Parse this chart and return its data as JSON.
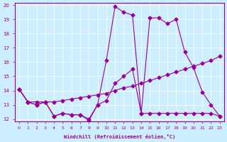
{
  "xlabel": "Windchill (Refroidissement éolien,°C)",
  "bg_color": "#cceeff",
  "line_color": "#990099",
  "xlim": [
    0,
    23
  ],
  "ylim": [
    12,
    20
  ],
  "xticks": [
    0,
    1,
    2,
    3,
    4,
    5,
    6,
    7,
    8,
    9,
    10,
    11,
    12,
    13,
    14,
    15,
    16,
    17,
    18,
    19,
    20,
    21,
    22,
    23
  ],
  "yticks": [
    12,
    13,
    14,
    15,
    16,
    17,
    18,
    19,
    20
  ],
  "series1_x": [
    0,
    1,
    2,
    3,
    4,
    5,
    6,
    7,
    8,
    9,
    10,
    11,
    12,
    13,
    14,
    15,
    16,
    17,
    18,
    19,
    20,
    21,
    22,
    23
  ],
  "series1_y": [
    14.1,
    13.2,
    13.0,
    13.2,
    12.2,
    12.4,
    12.3,
    12.3,
    11.9,
    13.0,
    16.1,
    19.9,
    19.5,
    19.3,
    12.4,
    19.1,
    19.1,
    18.7,
    19.0,
    16.7,
    15.6,
    13.9,
    13.0,
    12.2
  ],
  "series2_x": [
    0,
    1,
    2,
    3,
    4,
    5,
    6,
    7,
    8,
    9,
    10,
    11,
    12,
    13,
    14,
    15,
    16,
    17,
    18,
    19,
    20,
    21,
    22,
    23
  ],
  "series2_y": [
    14.1,
    13.2,
    13.0,
    13.2,
    12.2,
    12.4,
    12.3,
    12.3,
    12.0,
    13.0,
    13.3,
    14.5,
    15.0,
    15.5,
    12.4,
    12.4,
    12.4,
    12.4,
    12.4,
    12.4,
    12.4,
    12.4,
    12.4,
    12.2
  ],
  "series3_x": [
    0,
    1,
    2,
    3,
    4,
    5,
    6,
    7,
    8,
    9,
    10,
    11,
    12,
    13,
    14,
    15,
    16,
    17,
    18,
    19,
    20,
    21,
    22,
    23
  ],
  "series3_y": [
    14.1,
    13.2,
    13.2,
    13.2,
    13.2,
    13.3,
    13.4,
    13.5,
    13.6,
    13.7,
    13.8,
    14.0,
    14.2,
    14.3,
    14.5,
    14.7,
    14.9,
    15.1,
    15.3,
    15.5,
    15.7,
    15.9,
    16.1,
    16.4
  ]
}
